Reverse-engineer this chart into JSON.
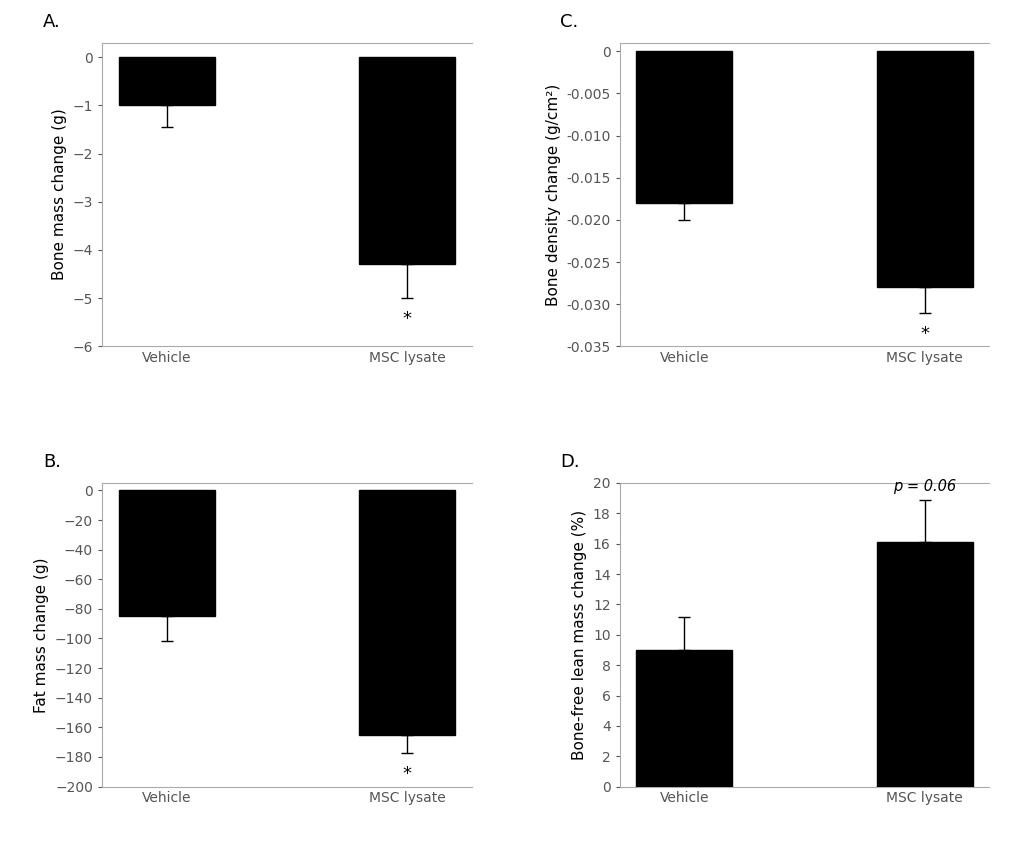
{
  "panel_A": {
    "label": "A.",
    "categories": [
      "Vehicle",
      "MSC lysate"
    ],
    "values": [
      -1.0,
      -4.3
    ],
    "errors": [
      0.45,
      0.7
    ],
    "ylabel": "Bone mass change (g)",
    "ylim": [
      -6,
      0.3
    ],
    "yticks": [
      0,
      -1,
      -2,
      -3,
      -4,
      -5,
      -6
    ],
    "star_text": "*",
    "star_idx": 1,
    "bar_color": "#000000"
  },
  "panel_C": {
    "label": "C.",
    "categories": [
      "Vehicle",
      "MSC lysate"
    ],
    "values": [
      -0.018,
      -0.028
    ],
    "errors": [
      0.002,
      0.003
    ],
    "ylabel": "Bone density change (g/cm²)",
    "ylim": [
      -0.035,
      0.001
    ],
    "yticks": [
      0,
      -0.005,
      -0.01,
      -0.015,
      -0.02,
      -0.025,
      -0.03,
      -0.035
    ],
    "star_text": "*",
    "star_idx": 1,
    "bar_color": "#000000"
  },
  "panel_B": {
    "label": "B.",
    "categories": [
      "Vehicle",
      "MSC lysate"
    ],
    "values": [
      -85,
      -165
    ],
    "errors": [
      17,
      12
    ],
    "ylabel": "Fat mass change (g)",
    "ylim": [
      -200,
      5
    ],
    "yticks": [
      0,
      -20,
      -40,
      -60,
      -80,
      -100,
      -120,
      -140,
      -160,
      -180,
      -200
    ],
    "star_text": "*",
    "star_idx": 1,
    "bar_color": "#000000"
  },
  "panel_D": {
    "label": "D.",
    "categories": [
      "Vehicle",
      "MSC lysate"
    ],
    "values": [
      9.0,
      16.1
    ],
    "errors": [
      2.2,
      2.8
    ],
    "ylabel": "Bone-free lean mass change (%)",
    "ylim": [
      0,
      20
    ],
    "yticks": [
      0,
      2,
      4,
      6,
      8,
      10,
      12,
      14,
      16,
      18,
      20
    ],
    "annotation_text": "p = 0.06",
    "annotation_idx": 1,
    "bar_color": "#000000"
  },
  "bar_width": 0.4,
  "tick_fontsize": 10,
  "label_fontsize": 11,
  "panel_label_fontsize": 13,
  "background_color": "#ffffff",
  "bar_color": "#000000",
  "spine_color": "#aaaaaa",
  "tick_color": "#555555"
}
